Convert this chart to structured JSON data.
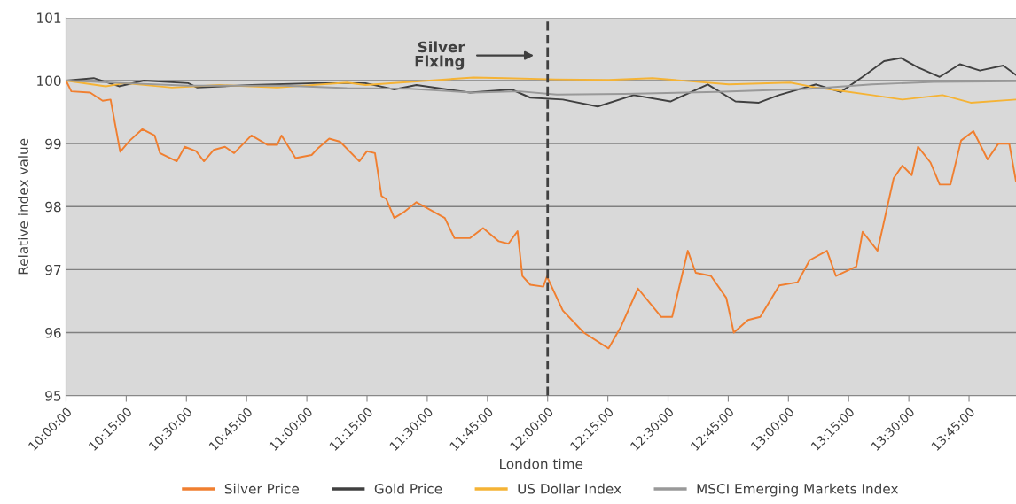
{
  "chart_data": {
    "type": "line",
    "xlabel": "London time",
    "ylabel": "Relative index value",
    "xlim": [
      10,
      13.945
    ],
    "ylim": [
      95,
      101
    ],
    "yticks": [
      95,
      96,
      97,
      98,
      99,
      100,
      101
    ],
    "xticks": [
      {
        "value": 10,
        "label": "10:00:00"
      },
      {
        "value": 10.25,
        "label": "10:15:00"
      },
      {
        "value": 10.5,
        "label": "10:30:00"
      },
      {
        "value": 10.75,
        "label": "10:45:00"
      },
      {
        "value": 11,
        "label": "11:00:00"
      },
      {
        "value": 11.25,
        "label": "11:15:00"
      },
      {
        "value": 11.5,
        "label": "11:30:00"
      },
      {
        "value": 11.75,
        "label": "11:45:00"
      },
      {
        "value": 12,
        "label": "12:00:00"
      },
      {
        "value": 12.25,
        "label": "12:15:00"
      },
      {
        "value": 12.5,
        "label": "12:30:00"
      },
      {
        "value": 12.75,
        "label": "12:45:00"
      },
      {
        "value": 13,
        "label": "13:00:00"
      },
      {
        "value": 13.25,
        "label": "13:15:00"
      },
      {
        "value": 13.5,
        "label": "13:30:00"
      },
      {
        "value": 13.75,
        "label": "13:45:00"
      }
    ],
    "grid": "y",
    "legend": "bottom",
    "marker": "none",
    "line_style": "solid",
    "ref_lines": [
      {
        "axis": "x",
        "value": 12,
        "color": "#404040",
        "line_style": "dashed"
      }
    ],
    "annotations": [
      "Silver\nFixing"
    ],
    "series": [
      {
        "name": "Silver Price",
        "color": "#f07f30",
        "x": [
          10.0,
          10.022,
          10.1,
          10.152,
          10.185,
          10.225,
          10.265,
          10.317,
          10.368,
          10.39,
          10.46,
          10.493,
          10.54,
          10.573,
          10.613,
          10.66,
          10.698,
          10.77,
          10.837,
          10.877,
          10.895,
          10.953,
          11.02,
          11.047,
          11.093,
          11.138,
          11.218,
          11.25,
          11.283,
          11.31,
          11.33,
          11.363,
          11.402,
          11.455,
          11.507,
          11.573,
          11.613,
          11.678,
          11.732,
          11.797,
          11.837,
          11.875,
          11.895,
          11.928,
          11.982,
          11.997,
          12.063,
          12.15,
          12.253,
          12.305,
          12.375,
          12.472,
          12.517,
          12.582,
          12.615,
          12.678,
          12.742,
          12.773,
          12.832,
          12.883,
          12.962,
          13.038,
          13.088,
          13.16,
          13.197,
          13.282,
          13.308,
          13.37,
          13.437,
          13.473,
          13.512,
          13.538,
          13.59,
          13.628,
          13.673,
          13.717,
          13.768,
          13.827,
          13.872,
          13.917,
          13.945
        ],
        "values": [
          100.0,
          99.83,
          99.81,
          99.68,
          99.7,
          98.87,
          99.05,
          99.23,
          99.13,
          98.85,
          98.72,
          98.95,
          98.88,
          98.72,
          98.9,
          98.95,
          98.85,
          99.13,
          98.98,
          98.98,
          99.13,
          98.77,
          98.82,
          98.93,
          99.08,
          99.03,
          98.72,
          98.88,
          98.85,
          98.17,
          98.12,
          97.82,
          97.91,
          98.07,
          97.96,
          97.82,
          97.5,
          97.5,
          97.66,
          97.45,
          97.41,
          97.61,
          96.9,
          96.76,
          96.73,
          96.89,
          96.35,
          96.0,
          95.75,
          96.1,
          96.7,
          96.25,
          96.25,
          97.3,
          96.95,
          96.9,
          96.55,
          96.0,
          96.2,
          96.25,
          96.75,
          96.8,
          97.15,
          97.3,
          96.9,
          97.05,
          97.6,
          97.3,
          98.45,
          98.65,
          98.5,
          98.95,
          98.7,
          98.35,
          98.35,
          99.05,
          99.2,
          98.75,
          99.0,
          99.0,
          98.4
        ]
      },
      {
        "name": "Gold Price",
        "color": "#404040",
        "x": [
          10.0,
          10.115,
          10.22,
          10.323,
          10.507,
          10.545,
          10.77,
          11.033,
          11.243,
          11.363,
          11.455,
          11.678,
          11.85,
          11.928,
          12.063,
          12.208,
          12.357,
          12.51,
          12.665,
          12.78,
          12.877,
          12.96,
          13.115,
          13.217,
          13.308,
          13.397,
          13.467,
          13.538,
          13.628,
          13.712,
          13.795,
          13.892,
          13.945
        ],
        "values": [
          100.0,
          100.04,
          99.91,
          100.0,
          99.96,
          99.89,
          99.93,
          99.96,
          99.96,
          99.86,
          99.93,
          99.81,
          99.86,
          99.73,
          99.7,
          99.59,
          99.77,
          99.67,
          99.94,
          99.67,
          99.65,
          99.77,
          99.94,
          99.82,
          100.06,
          100.31,
          100.36,
          100.21,
          100.06,
          100.26,
          100.16,
          100.24,
          100.09
        ]
      },
      {
        "name": "US Dollar Index",
        "color": "#f5b335",
        "x": [
          10.0,
          10.165,
          10.243,
          10.44,
          10.637,
          10.877,
          11.167,
          11.243,
          11.428,
          11.692,
          11.823,
          12.033,
          12.253,
          12.435,
          12.752,
          13.008,
          13.115,
          13.217,
          13.347,
          13.473,
          13.64,
          13.757,
          13.945
        ],
        "values": [
          100.0,
          99.91,
          99.96,
          99.89,
          99.93,
          99.89,
          99.97,
          99.93,
          99.98,
          100.05,
          100.04,
          100.02,
          100.01,
          100.04,
          99.94,
          99.97,
          99.89,
          99.84,
          99.77,
          99.7,
          99.77,
          99.65,
          99.7
        ]
      },
      {
        "name": "MSCI Emerging Markets Index",
        "color": "#999999",
        "x": [
          10.0,
          10.243,
          10.507,
          10.908,
          11.167,
          11.428,
          11.692,
          11.883,
          12.038,
          12.318,
          12.703,
          13.088,
          13.347,
          13.603,
          13.945
        ],
        "values": [
          100.0,
          99.96,
          99.92,
          99.92,
          99.88,
          99.87,
          99.81,
          99.83,
          99.78,
          99.79,
          99.82,
          99.87,
          99.94,
          99.98,
          99.99
        ]
      }
    ]
  }
}
